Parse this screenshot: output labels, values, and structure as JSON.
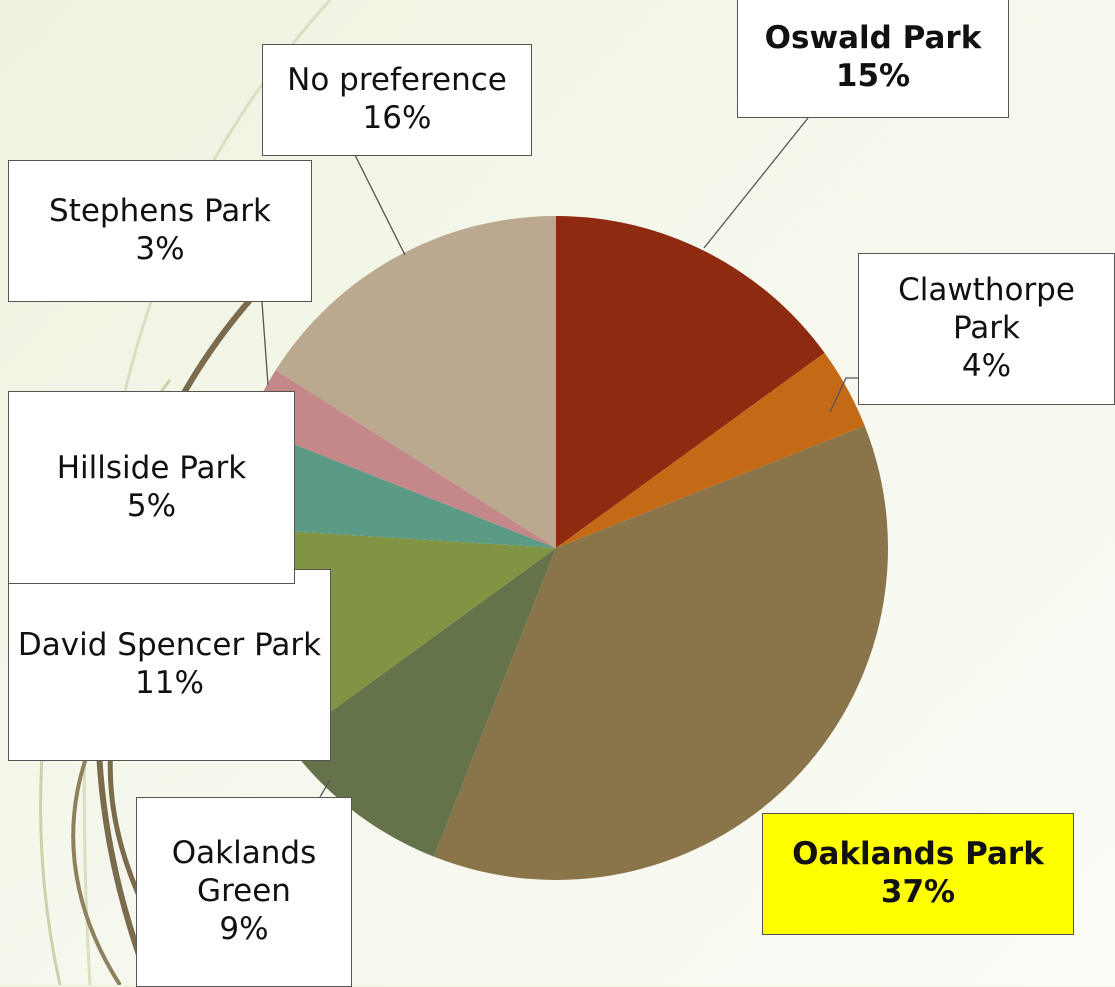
{
  "chart_data": {
    "type": "pie",
    "categories": [
      "Oswald Park",
      "Clawthorpe Park",
      "Oaklands Park",
      "Oaklands Green",
      "David Spencer Park",
      "Hillside Park",
      "Stephens Park",
      "No preference"
    ],
    "values": [
      15,
      4,
      37,
      9,
      11,
      5,
      3,
      16
    ],
    "value_labels": [
      "15%",
      "4%",
      "37%",
      "9%",
      "11%",
      "5%",
      "3%",
      "16%"
    ],
    "colors": [
      "#8e2a10",
      "#c46a17",
      "#8a744a",
      "#65734a",
      "#819444",
      "#5b9a84",
      "#c4888a",
      "#bba98f"
    ]
  }
}
